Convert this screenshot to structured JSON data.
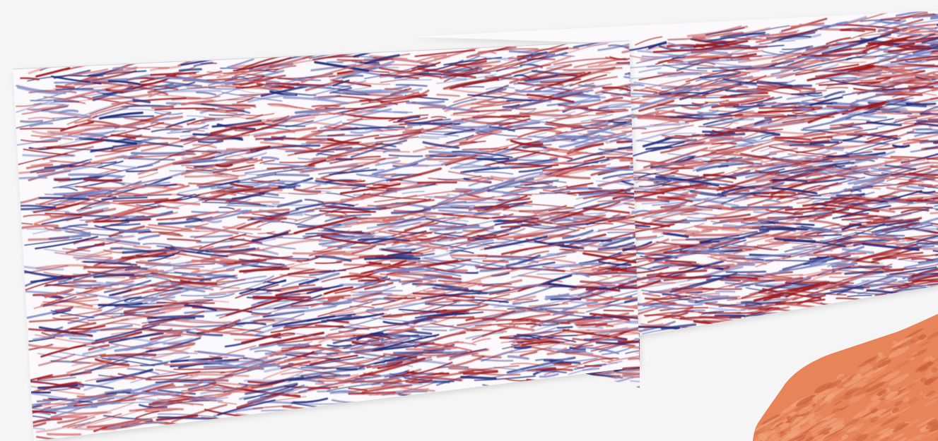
{
  "scene": {
    "background": "#f5f5f5",
    "colors": {
      "panel_base": "#fbf9fb",
      "reflector_red": "#9c1a1f",
      "reflector_red_light": "#d06a6a",
      "reflector_blue": "#1e2a7a",
      "reflector_blue_light": "#7d86c4",
      "horizon_surface": "#e8845a",
      "horizon_surface_dark": "#c8603a",
      "horizon_surface_light": "#f2a67e"
    },
    "objects": [
      {
        "name": "front-seismic-section"
      },
      {
        "name": "rear-seismic-section"
      },
      {
        "name": "crossline-seismic-section"
      },
      {
        "name": "horizon-surface"
      }
    ]
  }
}
